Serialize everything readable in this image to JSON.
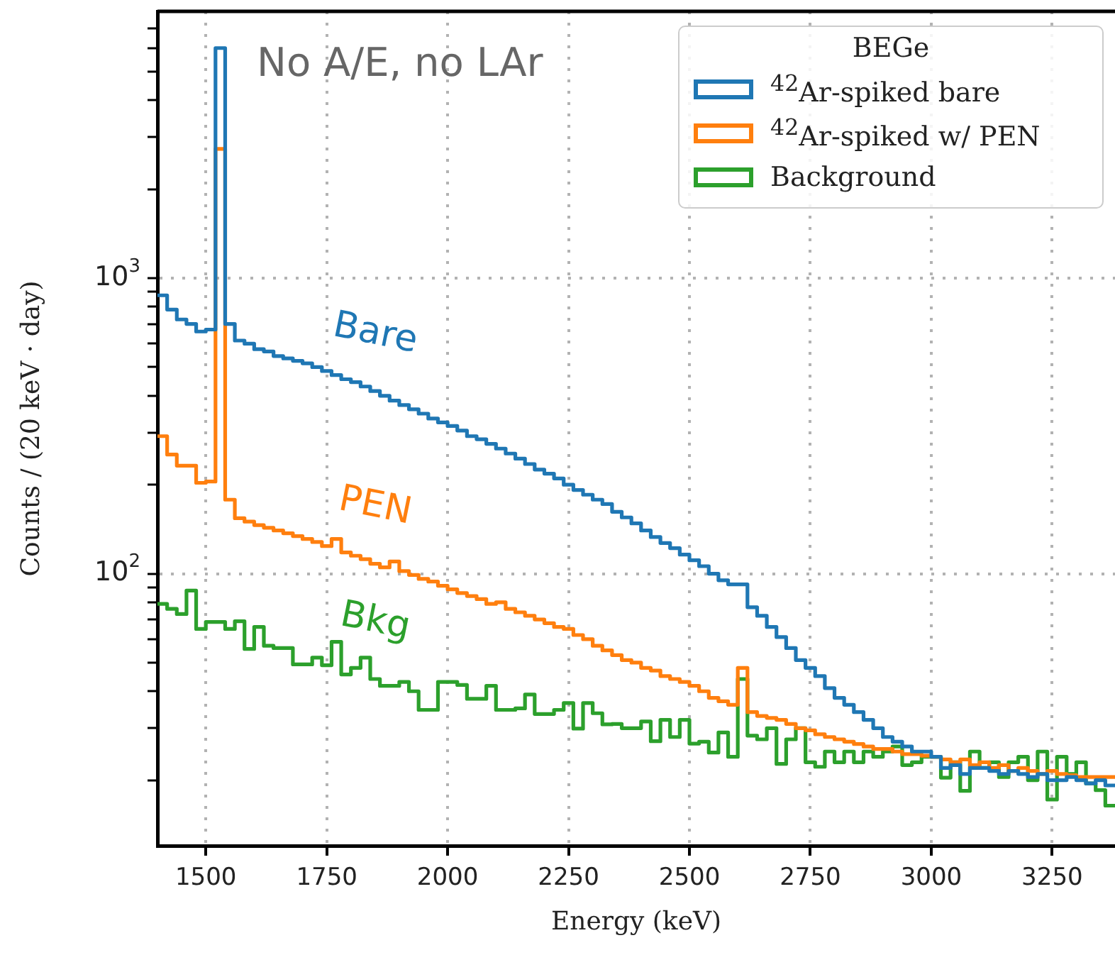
{
  "chart_data": {
    "type": "step",
    "xlabel": "Energy (keV)",
    "ylabel": "Counts / (20 keV · day)",
    "legend_title": "BEGe",
    "legend": "top right",
    "log": true,
    "grid": true,
    "xlim": [
      1400,
      3380
    ],
    "ylim": [
      12,
      8000
    ],
    "xticks": [
      1500,
      1750,
      2000,
      2250,
      2500,
      2750,
      3000,
      3250
    ],
    "yticks": [
      {
        "value": 20,
        "label": null
      },
      {
        "value": 30,
        "label": null
      },
      {
        "value": 40,
        "label": null
      },
      {
        "value": 50,
        "label": null
      },
      {
        "value": 60,
        "label": null
      },
      {
        "value": 70,
        "label": null
      },
      {
        "value": 80,
        "label": null
      },
      {
        "value": 90,
        "label": null
      },
      {
        "value": 100,
        "label": "10$^{2}$"
      },
      {
        "value": 200,
        "label": null
      },
      {
        "value": 300,
        "label": null
      },
      {
        "value": 400,
        "label": null
      },
      {
        "value": 500,
        "label": null
      },
      {
        "value": 600,
        "label": null
      },
      {
        "value": 700,
        "label": null
      },
      {
        "value": 800,
        "label": null
      },
      {
        "value": 900,
        "label": null
      },
      {
        "value": 1000,
        "label": "10$^{3}$"
      },
      {
        "value": 2000,
        "label": null
      },
      {
        "value": 3000,
        "label": null
      },
      {
        "value": 4000,
        "label": null
      },
      {
        "value": 5000,
        "label": null
      },
      {
        "value": 6000,
        "label": null
      },
      {
        "value": 7000,
        "label": null
      }
    ],
    "x": [
      1410,
      1430,
      1450,
      1470,
      1490,
      1510,
      1530,
      1550,
      1570,
      1590,
      1610,
      1630,
      1650,
      1670,
      1690,
      1710,
      1730,
      1750,
      1770,
      1790,
      1810,
      1830,
      1850,
      1870,
      1890,
      1910,
      1930,
      1950,
      1970,
      1990,
      2010,
      2030,
      2050,
      2070,
      2090,
      2110,
      2130,
      2150,
      2170,
      2190,
      2210,
      2230,
      2250,
      2270,
      2290,
      2310,
      2330,
      2350,
      2370,
      2390,
      2410,
      2430,
      2450,
      2470,
      2490,
      2510,
      2530,
      2550,
      2570,
      2590,
      2610,
      2630,
      2650,
      2670,
      2690,
      2710,
      2730,
      2750,
      2770,
      2790,
      2810,
      2830,
      2850,
      2870,
      2890,
      2910,
      2930,
      2950,
      2970,
      2990,
      3010,
      3030,
      3050,
      3070,
      3090,
      3110,
      3130,
      3150,
      3170,
      3190,
      3210,
      3230,
      3250,
      3270,
      3290,
      3310,
      3330,
      3350,
      3370
    ],
    "series": [
      {
        "name": "$^{42}$Ar-spiked bare",
        "color": "#1f77b4",
        "values": [
          875,
          783,
          725,
          700,
          660,
          670,
          6010,
          700,
          615,
          600,
          575,
          565,
          545,
          535,
          525,
          515,
          500,
          485,
          470,
          455,
          445,
          430,
          415,
          400,
          385,
          372,
          360,
          348,
          335,
          325,
          316,
          305,
          292,
          285,
          275,
          265,
          255,
          245,
          235,
          225,
          218,
          210,
          200,
          192,
          185,
          178,
          172,
          162,
          155,
          148,
          140,
          133,
          127,
          122,
          116,
          111,
          106,
          100,
          95,
          92,
          92,
          77,
          72,
          66,
          61,
          56,
          51,
          48,
          45,
          41,
          38,
          36,
          34,
          32,
          30,
          28,
          27,
          26,
          25,
          25,
          24,
          22,
          22.5,
          21,
          22,
          22,
          21.5,
          21,
          21.5,
          21,
          20.5,
          21,
          20,
          20,
          20.5,
          20,
          19.5,
          20,
          19.2
        ]
      },
      {
        "name": "$^{42}$Ar-spiked w/ PEN",
        "color": "#ff7f0e",
        "values": [
          292,
          253,
          232,
          232,
          203,
          205,
          2738,
          178,
          154,
          150,
          146,
          143,
          140,
          137,
          134,
          131,
          128,
          124,
          131,
          118,
          115,
          112,
          108,
          105,
          110,
          102,
          99,
          96,
          94,
          91,
          88.5,
          86,
          84,
          82,
          79,
          80,
          76,
          74,
          72,
          70,
          68,
          66,
          65,
          62,
          60,
          57,
          55,
          53,
          51,
          50,
          48,
          47,
          45,
          44,
          43,
          41.7,
          40,
          38,
          37,
          36,
          48,
          34,
          33,
          32.5,
          32,
          31,
          30,
          29.5,
          28.6,
          28,
          27.5,
          27,
          26.5,
          26,
          25.5,
          25.5,
          25,
          24.5,
          24.5,
          24.2,
          24,
          23.5,
          23,
          23.5,
          22.5,
          23,
          22,
          22.5,
          21.5,
          22,
          21.5,
          21,
          21.5,
          21,
          20.8,
          20.5,
          20.5,
          20.5,
          20.5
        ]
      },
      {
        "name": "Background",
        "color": "#2ca02c",
        "values": [
          79,
          76,
          73,
          87.6,
          65,
          68.6,
          68.6,
          65,
          69,
          55.6,
          66,
          57,
          56,
          56,
          49.3,
          49.3,
          52,
          49,
          58.8,
          45.6,
          48,
          52,
          44,
          41.7,
          41.7,
          43,
          40,
          34.6,
          34.6,
          43,
          43,
          42,
          37.7,
          37.7,
          41.7,
          34.6,
          34.6,
          35,
          39,
          33.5,
          33.5,
          34.6,
          36.5,
          29.9,
          36.5,
          33.7,
          30.9,
          31,
          30,
          30,
          31.6,
          27.1,
          32,
          28,
          32,
          26.6,
          27,
          24.8,
          29,
          24,
          44,
          28.3,
          27.5,
          30,
          22.7,
          27.5,
          30,
          23,
          22.2,
          25,
          23,
          25,
          23,
          25,
          24,
          25,
          26,
          22.5,
          23,
          24,
          24,
          20.4,
          23,
          18.4,
          25,
          22,
          23,
          20.5,
          23,
          24,
          20,
          25,
          17.2,
          24,
          21,
          23,
          19.5,
          18.5,
          16.4
        ]
      }
    ],
    "annotations": [
      "No A/E, no LAr",
      "Bare",
      "PEN",
      "Bkg"
    ]
  }
}
